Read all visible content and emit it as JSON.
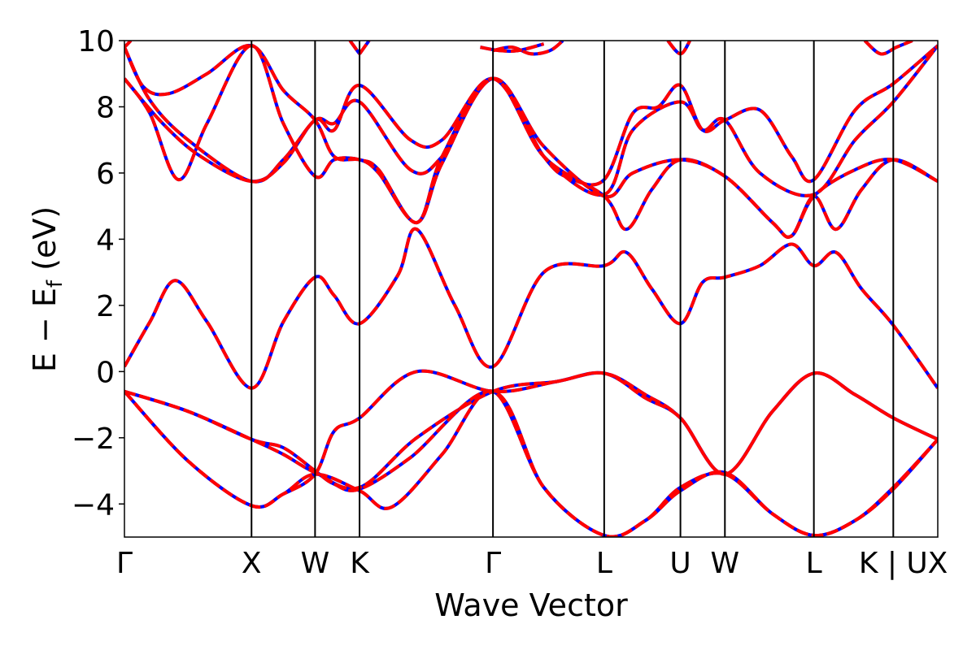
{
  "chart_data": {
    "type": "line",
    "title": "",
    "xlabel": "Wave Vector",
    "ylabel": "E − E",
    "ylabel_sub": "f",
    "ylabel_unit": "(eV)",
    "ylim": [
      -5,
      10
    ],
    "yticks": [
      -4,
      -2,
      0,
      2,
      4,
      6,
      8,
      10
    ],
    "ytick_labels": [
      "−4",
      "−2",
      "0",
      "2",
      "4",
      "6",
      "8",
      "10"
    ],
    "xlim": [
      0,
      12.8
    ],
    "kpoints": [
      {
        "label": "Γ",
        "x": 0
      },
      {
        "label": "X",
        "x": 2.0
      },
      {
        "label": "W",
        "x": 3.0
      },
      {
        "label": "K",
        "x": 3.7
      },
      {
        "label": "Γ",
        "x": 5.8
      },
      {
        "label": "L",
        "x": 7.55
      },
      {
        "label": "U",
        "x": 8.75
      },
      {
        "label": "W",
        "x": 9.45
      },
      {
        "label": "L",
        "x": 10.85
      },
      {
        "label": "K | U",
        "x": 12.1
      },
      {
        "label": "X",
        "x": 12.8
      }
    ],
    "grid": false,
    "line_styles": {
      "primary_color": "#0000ff",
      "overlay_color": "#ff0000",
      "overlay_style": "dashed"
    },
    "series": [
      {
        "points": [
          [
            0,
            -0.6
          ],
          [
            1.0,
            -1.2
          ],
          [
            2.0,
            -2.05
          ],
          [
            2.5,
            -2.5
          ],
          [
            3.0,
            -3.05
          ],
          [
            3.7,
            -3.5
          ],
          [
            4.6,
            -2.0
          ],
          [
            5.8,
            -0.6
          ],
          [
            6.8,
            -0.3
          ],
          [
            7.55,
            -0.05
          ],
          [
            8.2,
            -0.7
          ],
          [
            8.75,
            -1.4
          ],
          [
            9.45,
            -3.1
          ],
          [
            10.2,
            -1.2
          ],
          [
            10.85,
            -0.05
          ],
          [
            11.5,
            -0.7
          ],
          [
            12.1,
            -1.4
          ],
          [
            12.8,
            -2.05
          ]
        ]
      },
      {
        "points": [
          [
            0,
            -0.6
          ],
          [
            1.0,
            -2.7
          ],
          [
            2.0,
            -4.05
          ],
          [
            2.5,
            -3.7
          ],
          [
            3.0,
            -3.1
          ],
          [
            3.7,
            -3.6
          ],
          [
            4.2,
            -4.1
          ],
          [
            5.0,
            -2.5
          ],
          [
            5.8,
            -0.6
          ],
          [
            6.6,
            -3.5
          ],
          [
            7.55,
            -4.95
          ],
          [
            8.2,
            -4.5
          ],
          [
            8.75,
            -3.6
          ],
          [
            9.45,
            -3.05
          ],
          [
            10.2,
            -4.3
          ],
          [
            10.85,
            -4.95
          ],
          [
            11.5,
            -4.5
          ],
          [
            12.1,
            -3.55
          ],
          [
            12.8,
            -2.05
          ]
        ]
      },
      {
        "points": [
          [
            0,
            -0.6
          ],
          [
            1.0,
            -1.2
          ],
          [
            2.0,
            -2.05
          ],
          [
            2.5,
            -2.3
          ],
          [
            3.0,
            -3.0
          ],
          [
            3.3,
            -3.4
          ],
          [
            3.7,
            -3.55
          ],
          [
            4.5,
            -2.6
          ],
          [
            5.8,
            -0.6
          ],
          [
            6.6,
            -3.5
          ],
          [
            7.55,
            -4.95
          ],
          [
            8.2,
            -4.5
          ],
          [
            8.75,
            -3.5
          ],
          [
            9.45,
            -3.1
          ],
          [
            10.2,
            -4.3
          ],
          [
            10.85,
            -4.95
          ],
          [
            11.5,
            -4.5
          ],
          [
            12.1,
            -3.5
          ],
          [
            12.8,
            -2.05
          ]
        ]
      },
      {
        "points": [
          [
            0,
            -0.6
          ],
          [
            1.0,
            -2.7
          ],
          [
            2.0,
            -4.05
          ],
          [
            2.5,
            -3.7
          ],
          [
            3.0,
            -3.1
          ],
          [
            3.3,
            -1.8
          ],
          [
            3.7,
            -1.4
          ],
          [
            4.6,
            0.0
          ],
          [
            5.8,
            -0.6
          ],
          [
            6.8,
            -0.3
          ],
          [
            7.55,
            -0.05
          ],
          [
            8.2,
            -0.8
          ],
          [
            8.75,
            -1.4
          ],
          [
            9.45,
            -3.1
          ],
          [
            10.2,
            -1.2
          ],
          [
            10.85,
            -0.05
          ],
          [
            11.5,
            -0.7
          ],
          [
            12.1,
            -1.4
          ],
          [
            12.8,
            -2.05
          ]
        ]
      },
      {
        "points": [
          [
            0,
            0.15
          ],
          [
            0.4,
            1.5
          ],
          [
            0.8,
            2.75
          ],
          [
            1.3,
            1.5
          ],
          [
            2.0,
            -0.5
          ],
          [
            2.5,
            1.5
          ],
          [
            3.0,
            2.85
          ],
          [
            3.3,
            2.3
          ],
          [
            3.7,
            1.45
          ],
          [
            4.3,
            2.9
          ],
          [
            4.6,
            4.3
          ],
          [
            5.2,
            2.0
          ],
          [
            5.8,
            0.15
          ],
          [
            6.6,
            3.0
          ],
          [
            7.55,
            3.2
          ],
          [
            7.9,
            3.6
          ],
          [
            8.3,
            2.5
          ],
          [
            8.75,
            1.45
          ],
          [
            9.1,
            2.7
          ],
          [
            9.45,
            2.85
          ],
          [
            10.0,
            3.2
          ],
          [
            10.5,
            3.85
          ],
          [
            10.85,
            3.2
          ],
          [
            11.2,
            3.6
          ],
          [
            11.6,
            2.5
          ],
          [
            12.1,
            1.4
          ],
          [
            12.8,
            -0.5
          ]
        ]
      },
      {
        "points": [
          [
            0,
            8.85
          ],
          [
            0.6,
            7.5
          ],
          [
            1.2,
            6.5
          ],
          [
            2.0,
            5.75
          ],
          [
            2.5,
            6.3
          ],
          [
            3.0,
            7.6
          ],
          [
            3.3,
            7.3
          ],
          [
            3.7,
            8.65
          ],
          [
            4.5,
            7.0
          ],
          [
            5.0,
            7.0
          ],
          [
            5.8,
            8.85
          ],
          [
            6.6,
            6.5
          ],
          [
            7.0,
            5.85
          ],
          [
            7.55,
            5.8
          ],
          [
            8.0,
            7.8
          ],
          [
            8.4,
            8.0
          ],
          [
            8.75,
            8.65
          ],
          [
            9.1,
            7.3
          ],
          [
            9.45,
            7.6
          ],
          [
            10.0,
            7.9
          ],
          [
            10.5,
            6.5
          ],
          [
            10.85,
            5.8
          ],
          [
            11.5,
            7.9
          ],
          [
            12.1,
            8.7
          ],
          [
            12.8,
            9.85
          ]
        ]
      },
      {
        "points": [
          [
            0,
            9.8
          ],
          [
            0.3,
            8.6
          ],
          [
            0.7,
            8.4
          ],
          [
            1.3,
            9.0
          ],
          [
            2.0,
            9.85
          ],
          [
            2.5,
            8.5
          ],
          [
            3.0,
            7.6
          ],
          [
            3.3,
            6.5
          ],
          [
            3.7,
            6.4
          ],
          [
            4.0,
            6.1
          ],
          [
            4.6,
            4.5
          ],
          [
            5.0,
            6.5
          ],
          [
            5.8,
            8.85
          ],
          [
            6.6,
            6.5
          ],
          [
            7.55,
            5.3
          ],
          [
            7.9,
            4.3
          ],
          [
            8.3,
            5.5
          ],
          [
            8.75,
            6.4
          ],
          [
            9.45,
            5.9
          ],
          [
            10.2,
            4.5
          ],
          [
            10.5,
            4.1
          ],
          [
            10.85,
            5.3
          ],
          [
            11.2,
            4.3
          ],
          [
            11.6,
            5.5
          ],
          [
            12.1,
            6.4
          ],
          [
            12.8,
            5.75
          ]
        ]
      },
      {
        "points": [
          [
            0,
            8.85
          ],
          [
            0.4,
            7.8
          ],
          [
            0.85,
            5.8
          ],
          [
            1.3,
            7.5
          ],
          [
            2.0,
            9.85
          ],
          [
            2.5,
            7.5
          ],
          [
            3.0,
            5.9
          ],
          [
            3.3,
            6.4
          ],
          [
            3.7,
            6.4
          ],
          [
            4.0,
            6.0
          ],
          [
            4.6,
            4.5
          ],
          [
            5.0,
            6.3
          ],
          [
            5.8,
            8.85
          ],
          [
            6.6,
            6.8
          ],
          [
            7.55,
            5.3
          ],
          [
            8.0,
            6.0
          ],
          [
            8.75,
            6.4
          ],
          [
            9.45,
            5.9
          ],
          [
            10.2,
            4.5
          ],
          [
            10.5,
            4.1
          ],
          [
            10.85,
            5.3
          ],
          [
            11.5,
            6.1
          ],
          [
            12.1,
            6.4
          ],
          [
            12.8,
            5.75
          ]
        ]
      },
      {
        "points": [
          [
            0,
            9.8
          ],
          [
            0.4,
            8.2
          ],
          [
            1.0,
            7.0
          ],
          [
            2.0,
            5.75
          ],
          [
            2.5,
            6.4
          ],
          [
            3.0,
            7.6
          ],
          [
            3.3,
            7.5
          ],
          [
            3.7,
            8.15
          ],
          [
            4.5,
            6.1
          ],
          [
            5.0,
            6.5
          ],
          [
            5.8,
            8.85
          ],
          [
            6.6,
            6.5
          ],
          [
            7.55,
            5.35
          ],
          [
            8.0,
            7.3
          ],
          [
            8.75,
            8.15
          ],
          [
            9.1,
            7.3
          ],
          [
            9.45,
            7.6
          ],
          [
            10.0,
            6.0
          ],
          [
            10.85,
            5.35
          ],
          [
            11.5,
            7.0
          ],
          [
            12.1,
            8.15
          ],
          [
            12.8,
            9.85
          ]
        ]
      },
      {
        "points": [
          [
            3.7,
            9.6
          ],
          [
            3.85,
            10.0
          ]
        ]
      },
      {
        "points": [
          [
            3.55,
            10.0
          ],
          [
            3.7,
            9.6
          ]
        ]
      },
      {
        "points": [
          [
            5.6,
            9.8
          ],
          [
            5.9,
            9.7
          ],
          [
            6.2,
            9.7
          ],
          [
            6.6,
            9.9
          ]
        ]
      },
      {
        "points": [
          [
            5.8,
            9.7
          ],
          [
            6.1,
            9.8
          ],
          [
            6.4,
            9.6
          ],
          [
            6.7,
            9.7
          ],
          [
            6.9,
            10.0
          ]
        ]
      },
      {
        "points": [
          [
            8.55,
            10.0
          ],
          [
            8.75,
            9.6
          ],
          [
            8.9,
            10.0
          ]
        ]
      },
      {
        "points": [
          [
            11.65,
            10.0
          ],
          [
            11.9,
            9.6
          ],
          [
            12.15,
            9.8
          ],
          [
            12.4,
            10.0
          ]
        ]
      },
      {
        "points": [
          [
            0,
            9.8
          ],
          [
            0.1,
            10.0
          ]
        ]
      }
    ]
  }
}
